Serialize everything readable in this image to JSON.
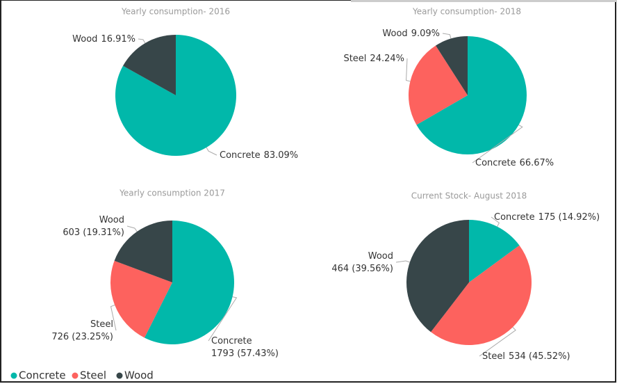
{
  "chart_data": [
    {
      "type": "pie",
      "title": "Yearly consumption- 2016",
      "categories": [
        "Concrete",
        "Wood"
      ],
      "values": [
        83.09,
        16.91
      ],
      "value_labels": [
        "83.09%",
        "16.91%"
      ],
      "colors": [
        "#01b8aa",
        "#374649"
      ]
    },
    {
      "type": "pie",
      "title": "Yearly consumption- 2018",
      "categories": [
        "Concrete",
        "Steel",
        "Wood"
      ],
      "values": [
        66.67,
        24.24,
        9.09
      ],
      "value_labels": [
        "66.67%",
        "24.24%",
        "9.09%"
      ],
      "colors": [
        "#01b8aa",
        "#fd625e",
        "#374649"
      ]
    },
    {
      "type": "pie",
      "title": "Yearly consumption  2017",
      "categories": [
        "Concrete",
        "Steel",
        "Wood"
      ],
      "values": [
        1793,
        726,
        603
      ],
      "value_labels": [
        "1793 (57.43%)",
        "726 (23.25%)",
        "603 (19.31%)"
      ],
      "colors": [
        "#01b8aa",
        "#fd625e",
        "#374649"
      ]
    },
    {
      "type": "pie",
      "title": "Current Stock- August 2018",
      "categories": [
        "Concrete",
        "Steel",
        "Wood"
      ],
      "values": [
        175,
        534,
        464
      ],
      "value_labels": [
        "175 (14.92%)",
        "534 (45.52%)",
        "464 (39.56%)"
      ],
      "colors": [
        "#01b8aa",
        "#fd625e",
        "#374649"
      ]
    }
  ],
  "legend": {
    "names": [
      "Concrete",
      "Steel",
      "Wood"
    ],
    "colors": [
      "#01b8aa",
      "#fd625e",
      "#374649"
    ]
  }
}
